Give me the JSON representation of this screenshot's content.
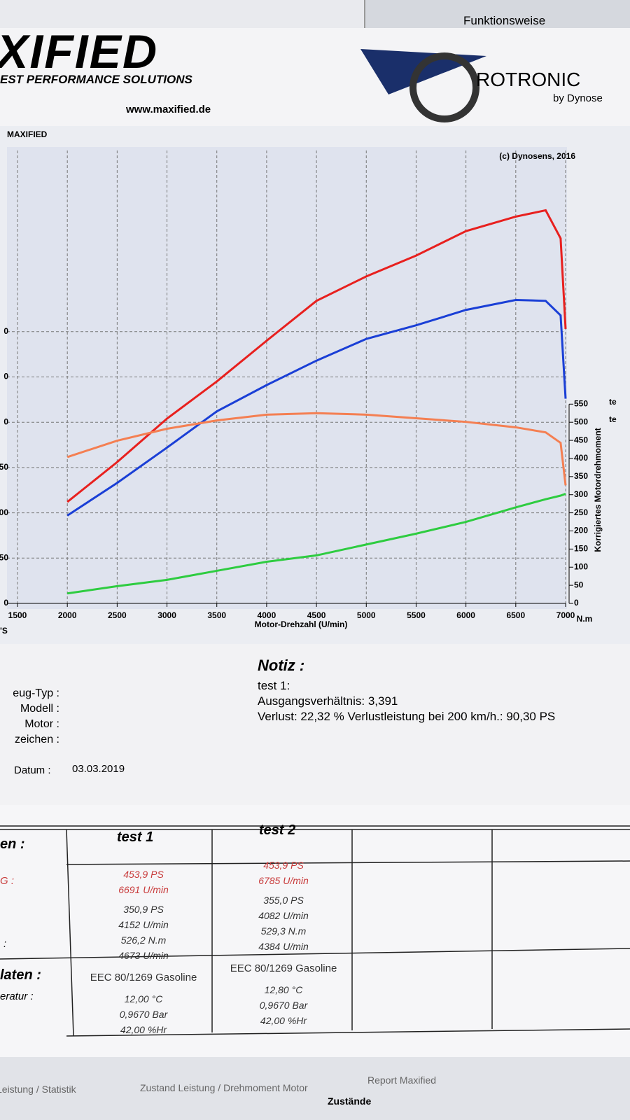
{
  "header": {
    "tab": "Funktionsweise",
    "logo": "XIFIED",
    "slogan": "EST PERFORMANCE SOLUTIONS",
    "web": "www.maxified.de",
    "brand": "ROTRONIC",
    "brand_sub": "by Dynose"
  },
  "chart_data": {
    "type": "line",
    "title": "MAXIFIED",
    "copyright": "(c) Dynosens, 2016",
    "x_label": "Motor-Drehzahl (U/min)",
    "y_label": "'S",
    "y2_label": "Korrigiertes Motordrehmoment",
    "y2_unit": "N.m",
    "side_notes": [
      "te",
      "te"
    ],
    "x": [
      2000,
      2500,
      3000,
      3500,
      4000,
      4500,
      5000,
      5500,
      6000,
      6500,
      6800,
      6950,
      7000
    ],
    "series": [
      {
        "color": "#e8201e",
        "values": [
          112,
          156,
          204,
          245,
          290,
          334,
          361,
          384,
          411,
          427,
          434,
          403,
          303
        ]
      },
      {
        "color": "#1a3fd6",
        "values": [
          97,
          133,
          172,
          212,
          241,
          268,
          292,
          307,
          324,
          335,
          334,
          318,
          226
        ]
      },
      {
        "color": "#f47f52",
        "axis": "y2",
        "values": [
          404,
          449,
          482,
          505,
          521,
          525,
          521,
          511,
          501,
          486,
          472,
          443,
          326
        ]
      },
      {
        "color": "#2ecc40",
        "values": [
          11,
          19,
          26,
          36,
          46,
          53,
          65,
          77,
          90,
          106,
          115,
          119,
          121
        ]
      }
    ],
    "xlim": [
      1500,
      7000
    ],
    "xticks": [
      1500,
      2000,
      2500,
      3000,
      3500,
      4000,
      4500,
      5000,
      5500,
      6000,
      6500,
      7000
    ],
    "ylim": [
      0,
      500
    ],
    "yticks": [
      0,
      50,
      {
        "value": 100,
        "label": "00"
      },
      {
        "value": 150,
        "label": "50"
      },
      {
        "value": 200,
        "label": "0"
      },
      {
        "value": 250,
        "label": "0"
      },
      {
        "value": 300,
        "label": "0"
      }
    ],
    "y2lim": [
      0,
      1250
    ],
    "y2ticks": [
      0,
      50,
      100,
      150,
      200,
      250,
      300,
      350,
      400,
      450,
      500,
      550
    ],
    "grid": true
  },
  "notes": {
    "title": "Notiz :",
    "lines": [
      "test 1:",
      "Ausgangsverhältnis: 3,391",
      "Verlust: 22,32 %  Verlustleistung bei 200 km/h.: 90,30 PS"
    ]
  },
  "vehicle": {
    "labels": [
      "eug-Typ :",
      "Modell :",
      "Motor :",
      "zeichen :"
    ],
    "date_label": "Datum :",
    "date": "03.03.2019"
  },
  "table": {
    "row_labels": [
      "en :",
      "G :",
      ":",
      "laten :",
      "eratur :"
    ],
    "headers": [
      "test 1",
      "test 2"
    ],
    "cols": [
      [
        "453,9 PS",
        "6691 U/min",
        "350,9 PS",
        "4152 U/min",
        "526,2 N.m",
        "4673 U/min",
        "EEC 80/1269 Gasoline",
        "12,00 °C",
        "0,9670 Bar",
        "42,00 %Hr"
      ],
      [
        "453,9 PS",
        "6785 U/min",
        "355,0 PS",
        "4082 U/min",
        "529,3 N.m",
        "4384 U/min",
        "EEC 80/1269 Gasoline",
        "12,80 °C",
        "0,9670 Bar",
        "42,00 %Hr"
      ]
    ]
  },
  "tabs": [
    "Leistung / Statistik",
    "Zustand Leistung / Drehmoment Motor",
    "Report Maxified",
    "Zustände"
  ]
}
